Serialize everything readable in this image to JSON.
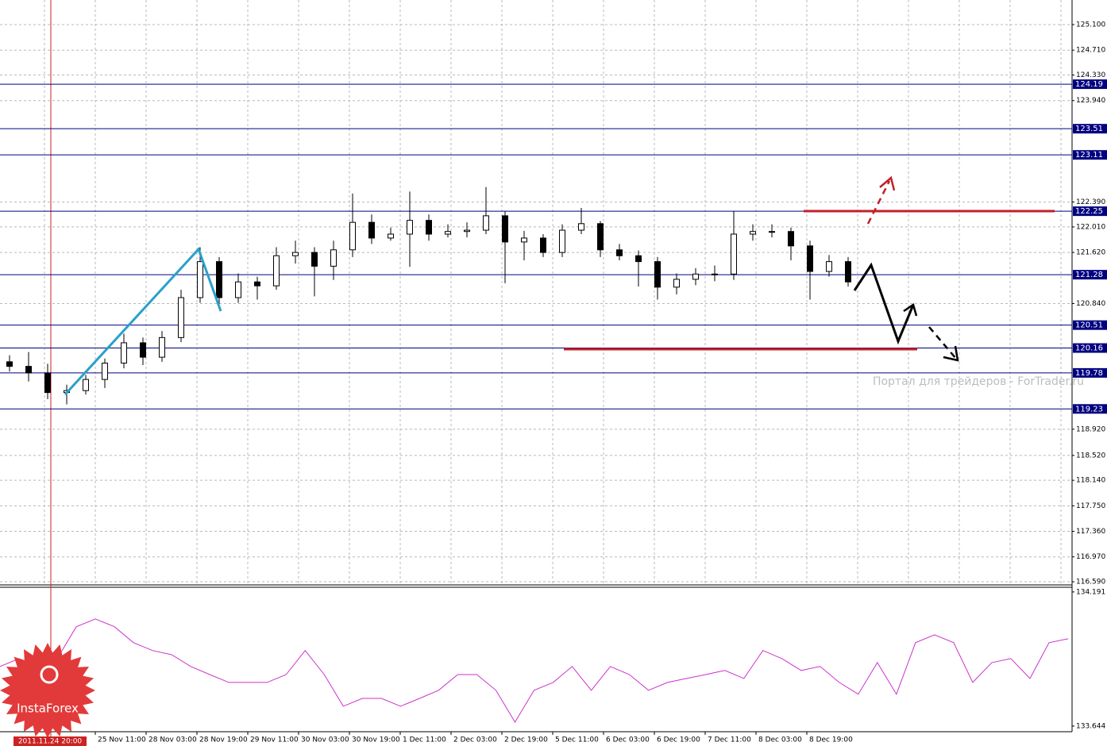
{
  "chart_data": [
    {
      "type": "candlestick",
      "ylim": [
        116.542,
        125.476
      ],
      "yticks": [
        {
          "value": 125.1,
          "label": "125.100"
        },
        {
          "value": 124.71,
          "label": "124.710"
        },
        {
          "value": 124.33,
          "label": "124.330"
        },
        {
          "value": 123.94,
          "label": "123.940"
        },
        {
          "value": 122.39,
          "label": "122.390"
        },
        {
          "value": 122.01,
          "label": "122.010"
        },
        {
          "value": 121.62,
          "label": "121.620"
        },
        {
          "value": 120.84,
          "label": "120.840"
        },
        {
          "value": 118.92,
          "label": "118.920"
        },
        {
          "value": 118.52,
          "label": "118.520"
        },
        {
          "value": 118.14,
          "label": "118.140"
        },
        {
          "value": 117.75,
          "label": "117.750"
        },
        {
          "value": 117.36,
          "label": "117.360"
        },
        {
          "value": 116.97,
          "label": "116.970"
        },
        {
          "value": 116.59,
          "label": "116.590"
        }
      ],
      "grid": true,
      "x_labels": [
        "25 Nov 11:00",
        "28 Nov 03:00",
        "28 Nov 19:00",
        "29 Nov 11:00",
        "30 Nov 03:00",
        "30 Nov 19:00",
        "1 Dec 11:00",
        "2 Dec 03:00",
        "2 Dec 19:00",
        "5 Dec 11:00",
        "6 Dec 03:00",
        "6 Dec 19:00",
        "7 Dec 11:00",
        "8 Dec 03:00",
        "8 Dec 19:00"
      ],
      "marker_label": "2011.11.24 20:00",
      "levels": [
        124.19,
        123.51,
        123.11,
        122.25,
        121.28,
        120.51,
        120.16,
        119.78,
        119.23
      ],
      "level_color": "#000080",
      "open": [
        119.95,
        119.88,
        119.78,
        119.48,
        119.51,
        119.68,
        119.93,
        120.24,
        120.02,
        120.32,
        120.93,
        121.48,
        120.93,
        121.17,
        121.11,
        121.57,
        121.62,
        121.41,
        121.66,
        122.08,
        121.84,
        121.9,
        122.11,
        121.9,
        121.94,
        121.96,
        122.18,
        121.78,
        121.84,
        121.62,
        121.96,
        122.06,
        121.66,
        121.57,
        121.48,
        121.09,
        121.21,
        121.29,
        121.29,
        121.9,
        121.94,
        121.94,
        121.72,
        121.33,
        121.48
      ],
      "high": [
        120.05,
        120.1,
        119.92,
        119.6,
        119.75,
        120.0,
        120.38,
        120.32,
        120.42,
        121.05,
        121.7,
        121.55,
        121.3,
        121.25,
        121.7,
        121.8,
        121.7,
        121.8,
        122.52,
        122.2,
        122.0,
        122.55,
        122.2,
        122.05,
        122.08,
        122.62,
        122.25,
        121.95,
        121.9,
        122.05,
        122.3,
        122.1,
        121.75,
        121.65,
        121.55,
        121.3,
        121.38,
        121.42,
        122.25,
        122.05,
        122.05,
        122.0,
        121.8,
        121.58,
        121.55
      ],
      "low": [
        119.8,
        119.65,
        119.38,
        119.3,
        119.45,
        119.55,
        119.85,
        119.9,
        119.95,
        120.25,
        120.85,
        120.8,
        120.85,
        120.9,
        121.05,
        121.45,
        120.95,
        121.2,
        121.55,
        121.75,
        121.8,
        121.4,
        121.8,
        121.85,
        121.85,
        121.9,
        121.15,
        121.5,
        121.55,
        121.55,
        121.9,
        121.55,
        121.5,
        121.1,
        120.9,
        120.98,
        121.12,
        121.18,
        121.2,
        121.8,
        121.85,
        121.5,
        120.9,
        121.25,
        121.1
      ],
      "close": [
        119.88,
        119.78,
        119.48,
        119.51,
        119.68,
        119.93,
        120.24,
        120.02,
        120.32,
        120.93,
        121.48,
        120.93,
        121.17,
        121.11,
        121.57,
        121.62,
        121.41,
        121.66,
        122.08,
        121.84,
        121.9,
        122.11,
        121.9,
        121.94,
        121.96,
        122.18,
        121.78,
        121.84,
        121.62,
        121.96,
        122.06,
        121.66,
        121.57,
        121.48,
        121.09,
        121.21,
        121.29,
        121.29,
        121.9,
        121.94,
        121.94,
        121.72,
        121.33,
        121.48,
        121.17
      ]
    },
    {
      "type": "line",
      "ylim": [
        133.621,
        134.21
      ],
      "yticks": [
        134.191,
        133.644
      ],
      "color": "#cc33cc",
      "values": [
        133.887,
        133.919,
        133.887,
        133.919,
        134.049,
        134.081,
        134.049,
        133.984,
        133.952,
        133.935,
        133.887,
        133.854,
        133.822,
        133.822,
        133.822,
        133.854,
        133.952,
        133.854,
        133.725,
        133.757,
        133.757,
        133.725,
        133.757,
        133.79,
        133.854,
        133.854,
        133.79,
        133.66,
        133.79,
        133.822,
        133.887,
        133.79,
        133.887,
        133.854,
        133.79,
        133.822,
        133.838,
        133.854,
        133.871,
        133.838,
        133.952,
        133.919,
        133.871,
        133.887,
        133.822,
        133.774,
        133.903,
        133.774,
        133.984,
        134.016,
        133.984,
        133.822,
        133.903,
        133.919,
        133.838,
        133.984,
        134.0
      ]
    }
  ],
  "watermark": "Портал для трейдеров - ForTrader.ru",
  "logo": "InstaForex"
}
